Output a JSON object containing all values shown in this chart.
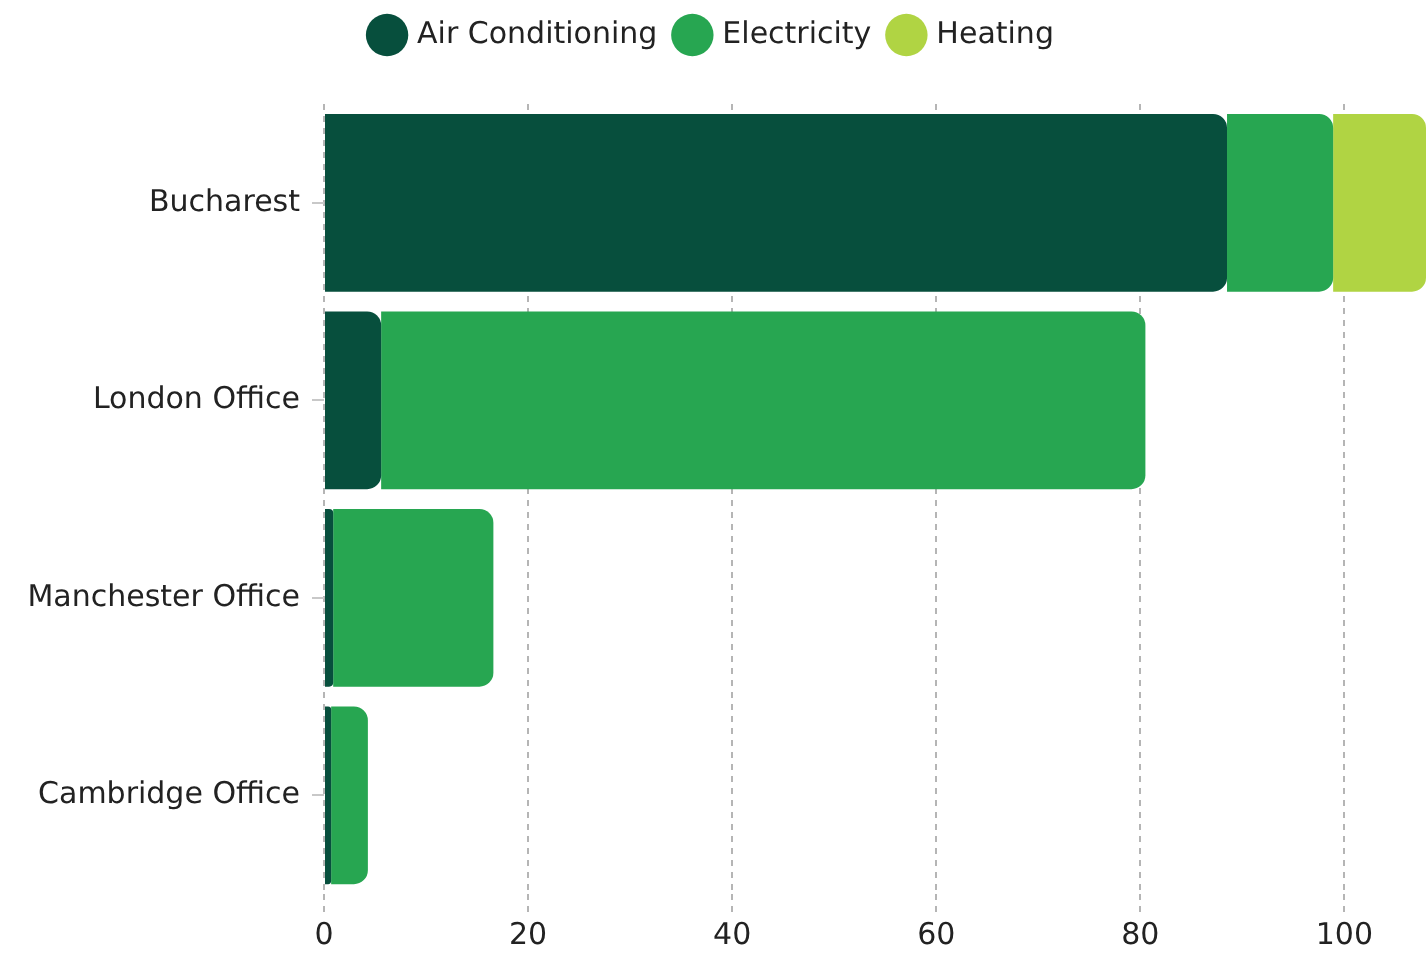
{
  "chart_data": {
    "type": "bar",
    "orientation": "horizontal",
    "stacked": true,
    "categories": [
      "Bucharest",
      "London Office",
      "Manchester Office",
      "Cambridge Office"
    ],
    "series": [
      {
        "name": "Air Conditioning",
        "color": "#074f3d",
        "values": [
          88.5,
          5.6,
          0.9,
          0.7
        ]
      },
      {
        "name": "Electricity",
        "color": "#27a651",
        "values": [
          10.4,
          74.9,
          15.7,
          3.6
        ]
      },
      {
        "name": "Heating",
        "color": "#b0d443",
        "values": [
          9.1,
          null,
          null,
          null
        ]
      }
    ],
    "xlim": [
      0,
      108
    ],
    "xticks": [
      0,
      20,
      40,
      60,
      80,
      100
    ],
    "grid": "x",
    "legend": "top"
  }
}
